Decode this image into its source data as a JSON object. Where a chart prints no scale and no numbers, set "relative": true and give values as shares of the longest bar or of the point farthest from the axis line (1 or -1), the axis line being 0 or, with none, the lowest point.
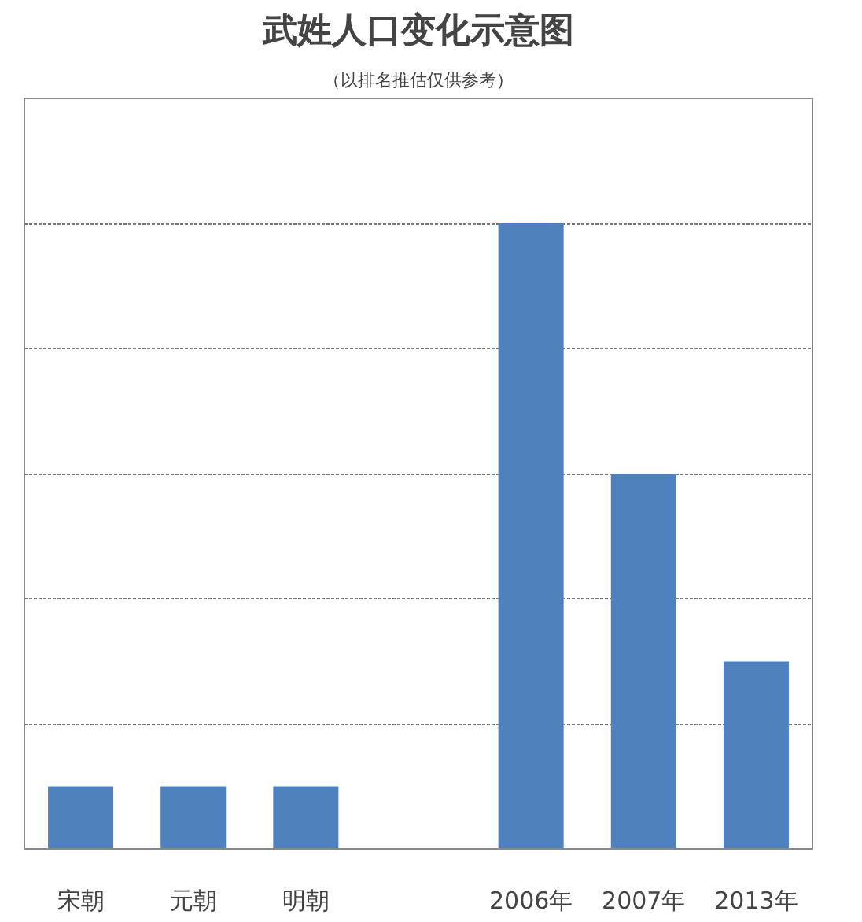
{
  "chart_data": {
    "type": "bar",
    "title": "武姓人口变化示意图",
    "subtitle": "（以排名推估仅供参考）",
    "categories": [
      "宋朝",
      "元朝",
      "明朝",
      null,
      "2006年",
      "2007年",
      "2013年"
    ],
    "values": [
      0.1,
      0.1,
      0.1,
      null,
      1,
      0.6,
      0.3
    ],
    "color": "#4f81bd",
    "relative": true,
    "grid": "y"
  }
}
